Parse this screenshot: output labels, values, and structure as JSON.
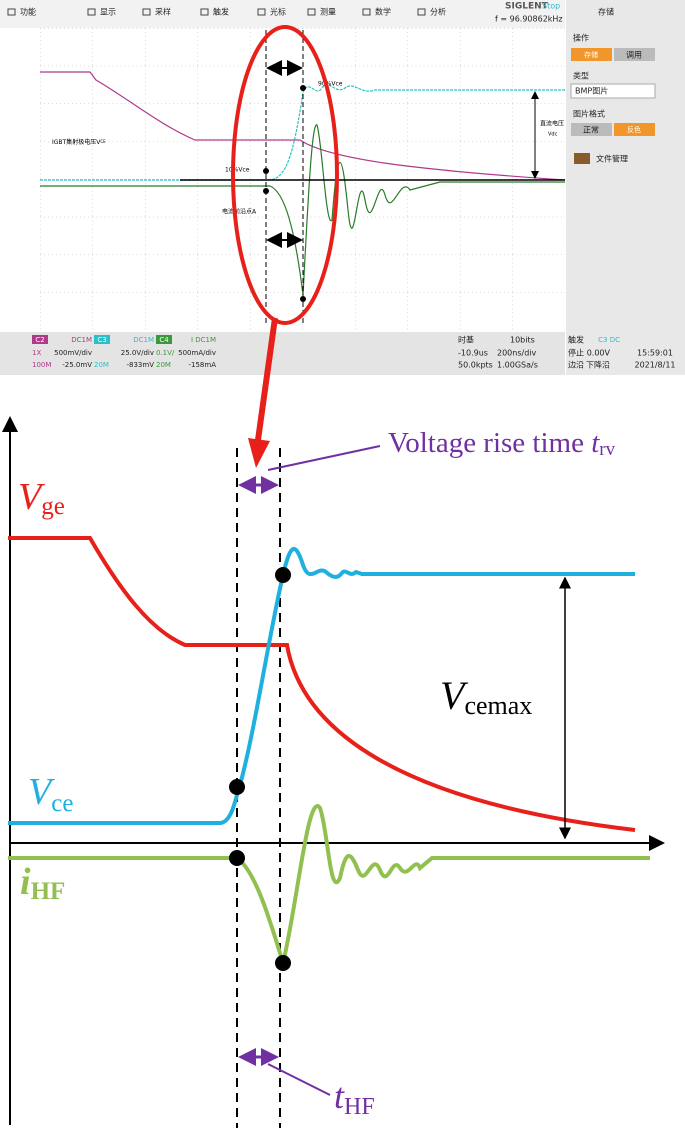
{
  "scope": {
    "menu": [
      "功能",
      "显示",
      "采样",
      "触发",
      "光标",
      "测量",
      "数学",
      "分析"
    ],
    "brand": "SIGLENT",
    "status": "Stop",
    "frequency": "f = 96.90862kHz",
    "side": {
      "title": "存储",
      "operation": "操作",
      "save": "存储",
      "recall": "调用",
      "type": "类型",
      "type_value": "BMP图片",
      "format": "图片格式",
      "normal": "正常",
      "invert": "反色",
      "file_manager": "文件管理"
    },
    "annotations": {
      "vce_label": "IGBT集射极电压V",
      "vce_sub": "CE",
      "ten": "10%Vce",
      "ninety": "90%Vce",
      "point_a": "电流前沿点A",
      "dc_voltage": "直流电压",
      "vdc": "Vdc"
    },
    "channels": [
      {
        "name": "C2",
        "coupling": "DC1M",
        "probe": "1X",
        "scale": "500mV/div",
        "bw": "100M",
        "offset": "-25.0mV"
      },
      {
        "name": "C3",
        "coupling": "DC1M",
        "probe": "",
        "scale": "25.0V/div",
        "bw": "20M",
        "offset": "-833mV"
      },
      {
        "name": "C4",
        "coupling": "I DC1M",
        "probe": "0.1V/",
        "scale": "500mA/div",
        "bw": "20M",
        "offset": "-158mA"
      }
    ],
    "timebase": {
      "label": "时基",
      "bits": "10bits",
      "delay": "-10.9us",
      "scale": "200ns/div",
      "points": "50.0kpts",
      "rate": "1.00GSa/s"
    },
    "trigger": {
      "label": "触发",
      "source": "C3 DC",
      "state": "停止",
      "level": "0.00V",
      "mode": "边沿",
      "slope": "下降沿"
    },
    "clock": {
      "time": "15:59:01",
      "date": "2021/8/11"
    }
  },
  "diagram": {
    "rise_time": {
      "main": "Voltage rise time ",
      "var": "t",
      "sub": "rv"
    },
    "vge": {
      "main": "V",
      "sub": "ge"
    },
    "vce": {
      "main": "V",
      "sub": "ce"
    },
    "ihf": {
      "main": "i",
      "sub": "HF"
    },
    "vcemax": {
      "main": "V",
      "sub": "cemax"
    },
    "thf": {
      "main": "t",
      "sub": "HF"
    }
  }
}
